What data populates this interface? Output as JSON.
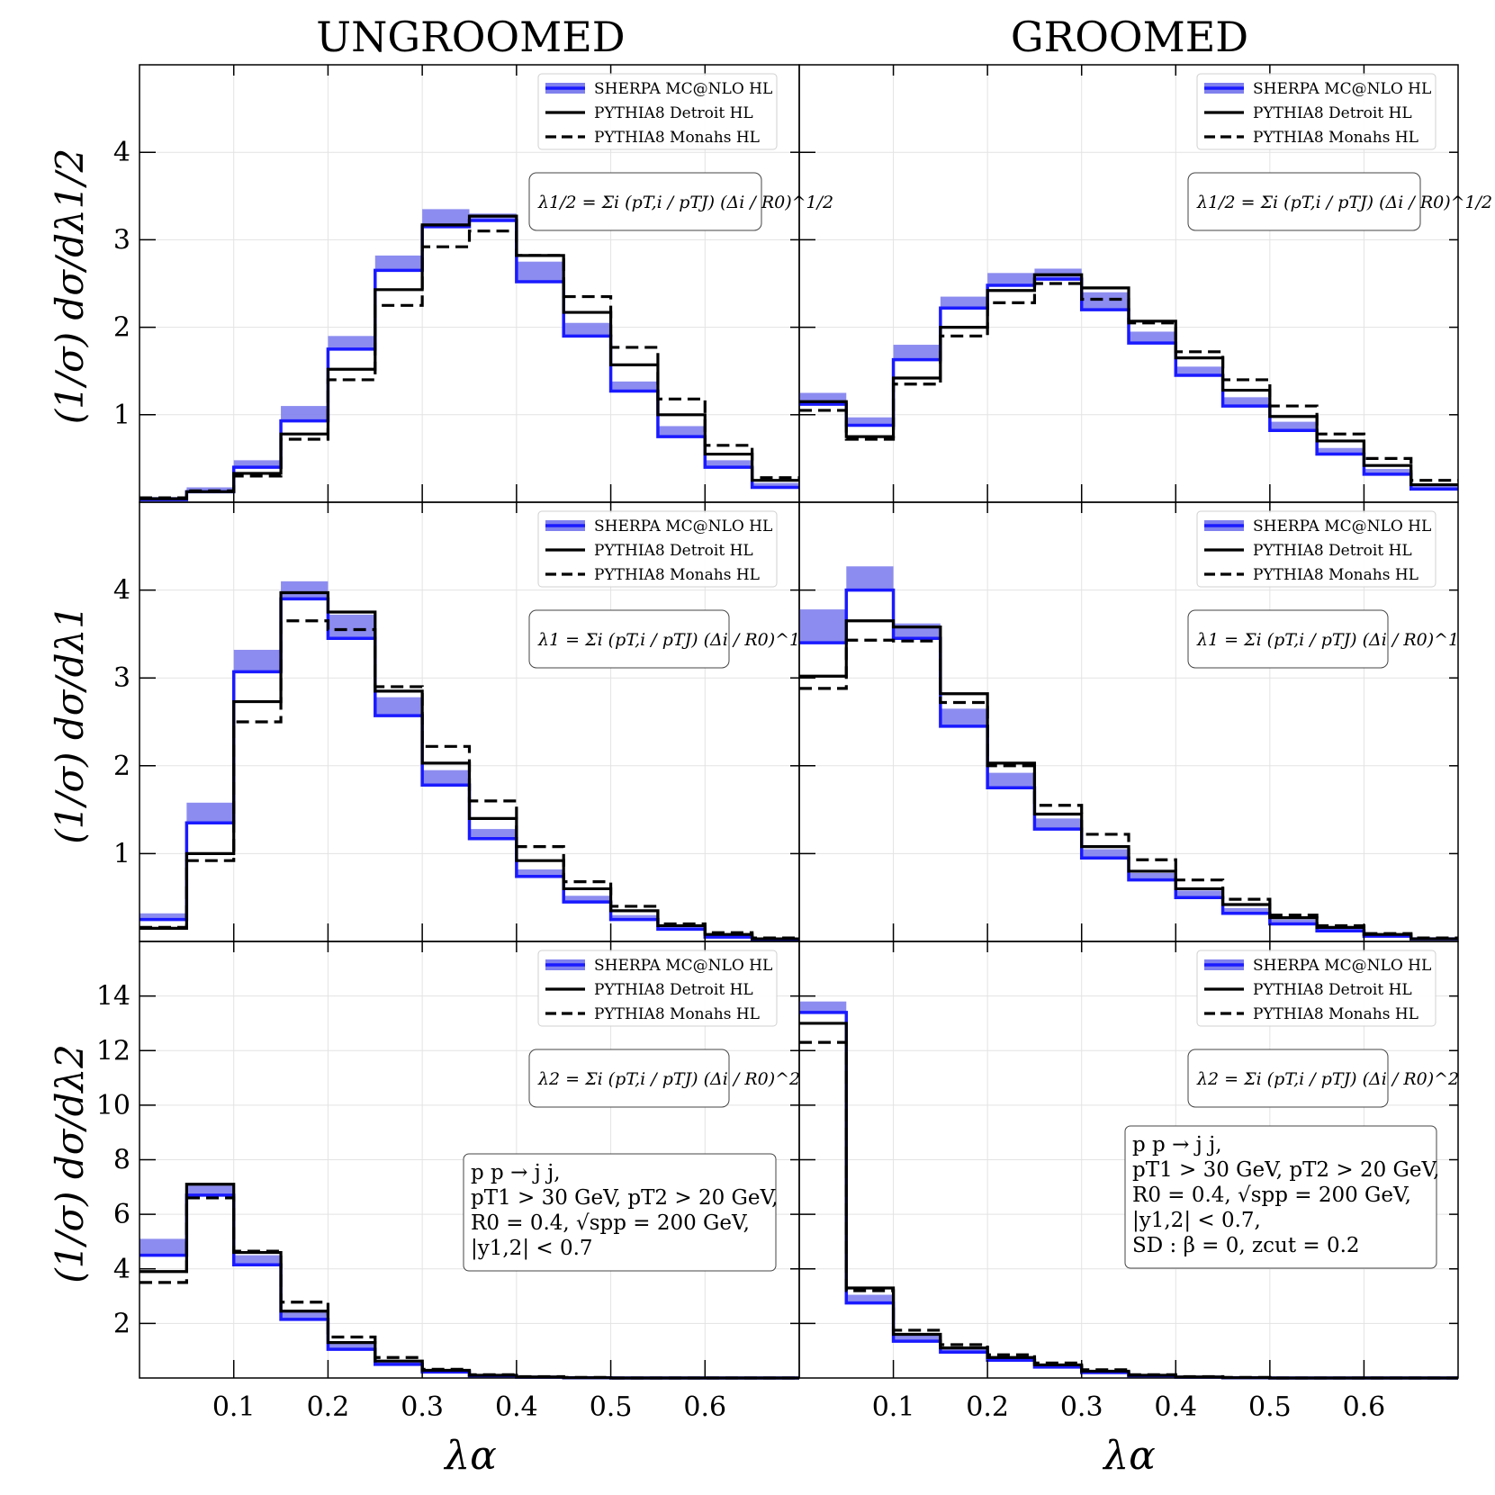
{
  "columns": [
    "UNGROOMED",
    "GROOMED"
  ],
  "y_labels": [
    "(1/σ) dσ/dλ1/2",
    "(1/σ) dσ/dλ1",
    "(1/σ) dσ/dλ2"
  ],
  "x_label": "λα",
  "legend": [
    "SHERPA MC@NLO HL",
    "PYTHIA8 Detroit HL",
    "PYTHIA8 Monahs HL"
  ],
  "formulas": [
    "λ1/2 = Σi (pT,i / pTJ) (Δi / R0)^1/2",
    "λ1 = Σi (pT,i / pTJ) (Δi / R0)^1",
    "λ2 = Σi (pT,i / pTJ) (Δi / R0)^2"
  ],
  "info_ungroomed": [
    "p p → j j,",
    "pT1 > 30 GeV,  pT2 > 20 GeV,",
    "R0 = 0.4, √spp = 200 GeV,",
    "|y1,2| < 0.7"
  ],
  "info_groomed": [
    "p p → j j,",
    "pT1 > 30 GeV,  pT2 > 20 GeV,",
    "R0 = 0.4, √spp = 200 GeV,",
    "|y1,2| < 0.7,",
    "SD : β = 0, zcut = 0.2"
  ],
  "colors": {
    "sherpa_line": "#1a1aff",
    "sherpa_band": "#8080ee",
    "pythia": "#000000"
  },
  "chart_data": [
    {
      "id": "ungroomed-l05",
      "type": "line",
      "step": true,
      "x_edges": [
        0,
        0.05,
        0.1,
        0.15,
        0.2,
        0.25,
        0.3,
        0.35,
        0.4,
        0.45,
        0.5,
        0.55,
        0.6,
        0.65,
        0.7
      ],
      "xlim": [
        0,
        0.7
      ],
      "ylim": [
        0,
        5
      ],
      "xticks": [
        "0.1",
        "0.2",
        "0.3",
        "0.4",
        "0.5",
        "0.6"
      ],
      "xtick_values": [
        0.1,
        0.2,
        0.3,
        0.4,
        0.5,
        0.6
      ],
      "yticks": [
        "1",
        "2",
        "3",
        "4"
      ],
      "ytick_values": [
        1,
        2,
        3,
        4
      ],
      "series": [
        {
          "name": "SHERPA MC@NLO HL",
          "low": [
            0.03,
            0.12,
            0.4,
            0.93,
            1.75,
            2.65,
            3.15,
            3.22,
            2.52,
            1.9,
            1.27,
            0.75,
            0.4,
            0.17
          ],
          "high": [
            0.06,
            0.17,
            0.48,
            1.1,
            1.9,
            2.82,
            3.35,
            3.3,
            2.75,
            2.05,
            1.38,
            0.87,
            0.48,
            0.22
          ]
        },
        {
          "name": "PYTHIA8 Detroit HL",
          "values": [
            0.04,
            0.12,
            0.33,
            0.78,
            1.52,
            2.43,
            3.17,
            3.27,
            2.82,
            2.17,
            1.57,
            1.0,
            0.55,
            0.25
          ]
        },
        {
          "name": "PYTHIA8 Monahs HL",
          "values": [
            0.05,
            0.13,
            0.3,
            0.72,
            1.4,
            2.25,
            2.92,
            3.1,
            2.82,
            2.35,
            1.77,
            1.18,
            0.65,
            0.28
          ]
        }
      ]
    },
    {
      "id": "groomed-l05",
      "type": "line",
      "step": true,
      "x_edges": [
        0,
        0.05,
        0.1,
        0.15,
        0.2,
        0.25,
        0.3,
        0.35,
        0.4,
        0.45,
        0.5,
        0.55,
        0.6,
        0.65,
        0.7
      ],
      "xlim": [
        0,
        0.7
      ],
      "ylim": [
        0,
        5
      ],
      "xticks": [
        "0.1",
        "0.2",
        "0.3",
        "0.4",
        "0.5",
        "0.6"
      ],
      "xtick_values": [
        0.1,
        0.2,
        0.3,
        0.4,
        0.5,
        0.6
      ],
      "yticks": [
        "1",
        "2",
        "3",
        "4"
      ],
      "ytick_values": [
        1,
        2,
        3,
        4
      ],
      "series": [
        {
          "name": "SHERPA MC@NLO HL",
          "low": [
            1.12,
            0.88,
            1.63,
            2.22,
            2.48,
            2.55,
            2.2,
            1.82,
            1.45,
            1.1,
            0.82,
            0.55,
            0.32,
            0.15
          ],
          "high": [
            1.25,
            0.97,
            1.8,
            2.35,
            2.62,
            2.67,
            2.4,
            1.95,
            1.55,
            1.2,
            0.92,
            0.62,
            0.38,
            0.2
          ]
        },
        {
          "name": "PYTHIA8 Detroit HL",
          "values": [
            1.15,
            0.75,
            1.42,
            2.0,
            2.42,
            2.6,
            2.45,
            2.07,
            1.65,
            1.28,
            0.98,
            0.7,
            0.42,
            0.2
          ]
        },
        {
          "name": "PYTHIA8 Monahs HL",
          "values": [
            1.05,
            0.72,
            1.35,
            1.9,
            2.28,
            2.5,
            2.32,
            2.05,
            1.72,
            1.4,
            1.1,
            0.78,
            0.5,
            0.25
          ]
        }
      ]
    },
    {
      "id": "ungroomed-l1",
      "type": "line",
      "step": true,
      "x_edges": [
        0,
        0.05,
        0.1,
        0.15,
        0.2,
        0.25,
        0.3,
        0.35,
        0.4,
        0.45,
        0.5,
        0.55,
        0.6,
        0.65,
        0.7
      ],
      "xlim": [
        0,
        0.7
      ],
      "ylim": [
        0,
        5
      ],
      "xticks": [
        "0.1",
        "0.2",
        "0.3",
        "0.4",
        "0.5",
        "0.6"
      ],
      "xtick_values": [
        0.1,
        0.2,
        0.3,
        0.4,
        0.5,
        0.6
      ],
      "yticks": [
        "1",
        "2",
        "3",
        "4"
      ],
      "ytick_values": [
        1,
        2,
        3,
        4
      ],
      "series": [
        {
          "name": "SHERPA MC@NLO HL",
          "low": [
            0.25,
            1.35,
            3.07,
            3.9,
            3.45,
            2.57,
            1.78,
            1.17,
            0.74,
            0.45,
            0.25,
            0.14,
            0.05,
            0.02
          ],
          "high": [
            0.32,
            1.58,
            3.32,
            4.1,
            3.72,
            2.78,
            1.95,
            1.28,
            0.82,
            0.52,
            0.3,
            0.18,
            0.08,
            0.04
          ]
        },
        {
          "name": "PYTHIA8 Detroit HL",
          "values": [
            0.15,
            1.0,
            2.73,
            3.97,
            3.75,
            2.85,
            2.03,
            1.4,
            0.92,
            0.6,
            0.35,
            0.18,
            0.08,
            0.03
          ]
        },
        {
          "name": "PYTHIA8 Monahs HL",
          "values": [
            0.16,
            0.92,
            2.5,
            3.65,
            3.55,
            2.9,
            2.22,
            1.6,
            1.08,
            0.68,
            0.4,
            0.2,
            0.1,
            0.04
          ]
        }
      ]
    },
    {
      "id": "groomed-l1",
      "type": "line",
      "step": true,
      "x_edges": [
        0,
        0.05,
        0.1,
        0.15,
        0.2,
        0.25,
        0.3,
        0.35,
        0.4,
        0.45,
        0.5,
        0.55,
        0.6,
        0.65,
        0.7
      ],
      "xlim": [
        0,
        0.7
      ],
      "ylim": [
        0,
        5
      ],
      "xticks": [
        "0.1",
        "0.2",
        "0.3",
        "0.4",
        "0.5",
        "0.6"
      ],
      "xtick_values": [
        0.1,
        0.2,
        0.3,
        0.4,
        0.5,
        0.6
      ],
      "yticks": [
        "1",
        "2",
        "3",
        "4"
      ],
      "ytick_values": [
        1,
        2,
        3,
        4
      ],
      "series": [
        {
          "name": "SHERPA MC@NLO HL",
          "low": [
            3.4,
            4.0,
            3.45,
            2.45,
            1.75,
            1.28,
            0.95,
            0.7,
            0.5,
            0.32,
            0.2,
            0.12,
            0.06,
            0.03
          ],
          "high": [
            3.78,
            4.27,
            3.62,
            2.65,
            1.92,
            1.4,
            1.05,
            0.78,
            0.58,
            0.38,
            0.25,
            0.15,
            0.08,
            0.04
          ]
        },
        {
          "name": "PYTHIA8 Detroit HL",
          "values": [
            3.02,
            3.65,
            3.58,
            2.82,
            2.03,
            1.45,
            1.08,
            0.8,
            0.6,
            0.42,
            0.27,
            0.16,
            0.08,
            0.03
          ]
        },
        {
          "name": "PYTHIA8 Monahs HL",
          "values": [
            2.88,
            3.43,
            3.42,
            2.72,
            2.0,
            1.55,
            1.22,
            0.93,
            0.7,
            0.48,
            0.3,
            0.18,
            0.09,
            0.04
          ]
        }
      ]
    },
    {
      "id": "ungroomed-l2",
      "type": "line",
      "step": true,
      "x_edges": [
        0,
        0.05,
        0.1,
        0.15,
        0.2,
        0.25,
        0.3,
        0.35,
        0.4,
        0.45,
        0.5,
        0.55,
        0.6,
        0.65,
        0.7
      ],
      "xlim": [
        0,
        0.7
      ],
      "ylim": [
        0,
        16
      ],
      "xticks": [
        "0.1",
        "0.2",
        "0.3",
        "0.4",
        "0.5",
        "0.6"
      ],
      "xtick_values": [
        0.1,
        0.2,
        0.3,
        0.4,
        0.5,
        0.6
      ],
      "yticks": [
        "2",
        "4",
        "6",
        "8",
        "10",
        "12",
        "14"
      ],
      "ytick_values": [
        2,
        4,
        6,
        8,
        10,
        12,
        14
      ],
      "series": [
        {
          "name": "SHERPA MC@NLO HL",
          "low": [
            4.5,
            6.7,
            4.15,
            2.15,
            1.05,
            0.5,
            0.22,
            0.08,
            0.03,
            0.01,
            0.0,
            0.0,
            0.0,
            0.0
          ],
          "high": [
            5.1,
            7.05,
            4.5,
            2.4,
            1.25,
            0.6,
            0.28,
            0.12,
            0.05,
            0.02,
            0.01,
            0.0,
            0.0,
            0.0
          ]
        },
        {
          "name": "PYTHIA8 Detroit HL",
          "values": [
            3.9,
            7.1,
            4.6,
            2.45,
            1.3,
            0.62,
            0.28,
            0.1,
            0.04,
            0.01,
            0.0,
            0.0,
            0.0,
            0.0
          ]
        },
        {
          "name": "PYTHIA8 Monahs HL",
          "values": [
            3.5,
            6.6,
            4.65,
            2.78,
            1.5,
            0.75,
            0.32,
            0.12,
            0.05,
            0.02,
            0.0,
            0.0,
            0.0,
            0.0
          ]
        }
      ]
    },
    {
      "id": "groomed-l2",
      "type": "line",
      "step": true,
      "x_edges": [
        0,
        0.05,
        0.1,
        0.15,
        0.2,
        0.25,
        0.3,
        0.35,
        0.4,
        0.45,
        0.5,
        0.55,
        0.6,
        0.65,
        0.7
      ],
      "xlim": [
        0,
        0.7
      ],
      "ylim": [
        0,
        16
      ],
      "xticks": [
        "0.1",
        "0.2",
        "0.3",
        "0.4",
        "0.5",
        "0.6"
      ],
      "xtick_values": [
        0.1,
        0.2,
        0.3,
        0.4,
        0.5,
        0.6
      ],
      "yticks": [
        "2",
        "4",
        "6",
        "8",
        "10",
        "12",
        "14"
      ],
      "ytick_values": [
        2,
        4,
        6,
        8,
        10,
        12,
        14
      ],
      "series": [
        {
          "name": "SHERPA MC@NLO HL",
          "low": [
            13.4,
            2.75,
            1.35,
            0.95,
            0.65,
            0.4,
            0.2,
            0.08,
            0.03,
            0.01,
            0.0,
            0.0,
            0.0,
            0.0
          ],
          "high": [
            13.8,
            3.05,
            1.55,
            1.1,
            0.75,
            0.48,
            0.26,
            0.12,
            0.05,
            0.02,
            0.0,
            0.0,
            0.0,
            0.0
          ]
        },
        {
          "name": "PYTHIA8 Detroit HL",
          "values": [
            13.0,
            3.3,
            1.6,
            1.1,
            0.75,
            0.48,
            0.25,
            0.1,
            0.04,
            0.01,
            0.0,
            0.0,
            0.0,
            0.0
          ]
        },
        {
          "name": "PYTHIA8 Monahs HL",
          "values": [
            12.3,
            3.2,
            1.75,
            1.22,
            0.85,
            0.55,
            0.3,
            0.12,
            0.05,
            0.02,
            0.0,
            0.0,
            0.0,
            0.0
          ]
        }
      ]
    }
  ]
}
